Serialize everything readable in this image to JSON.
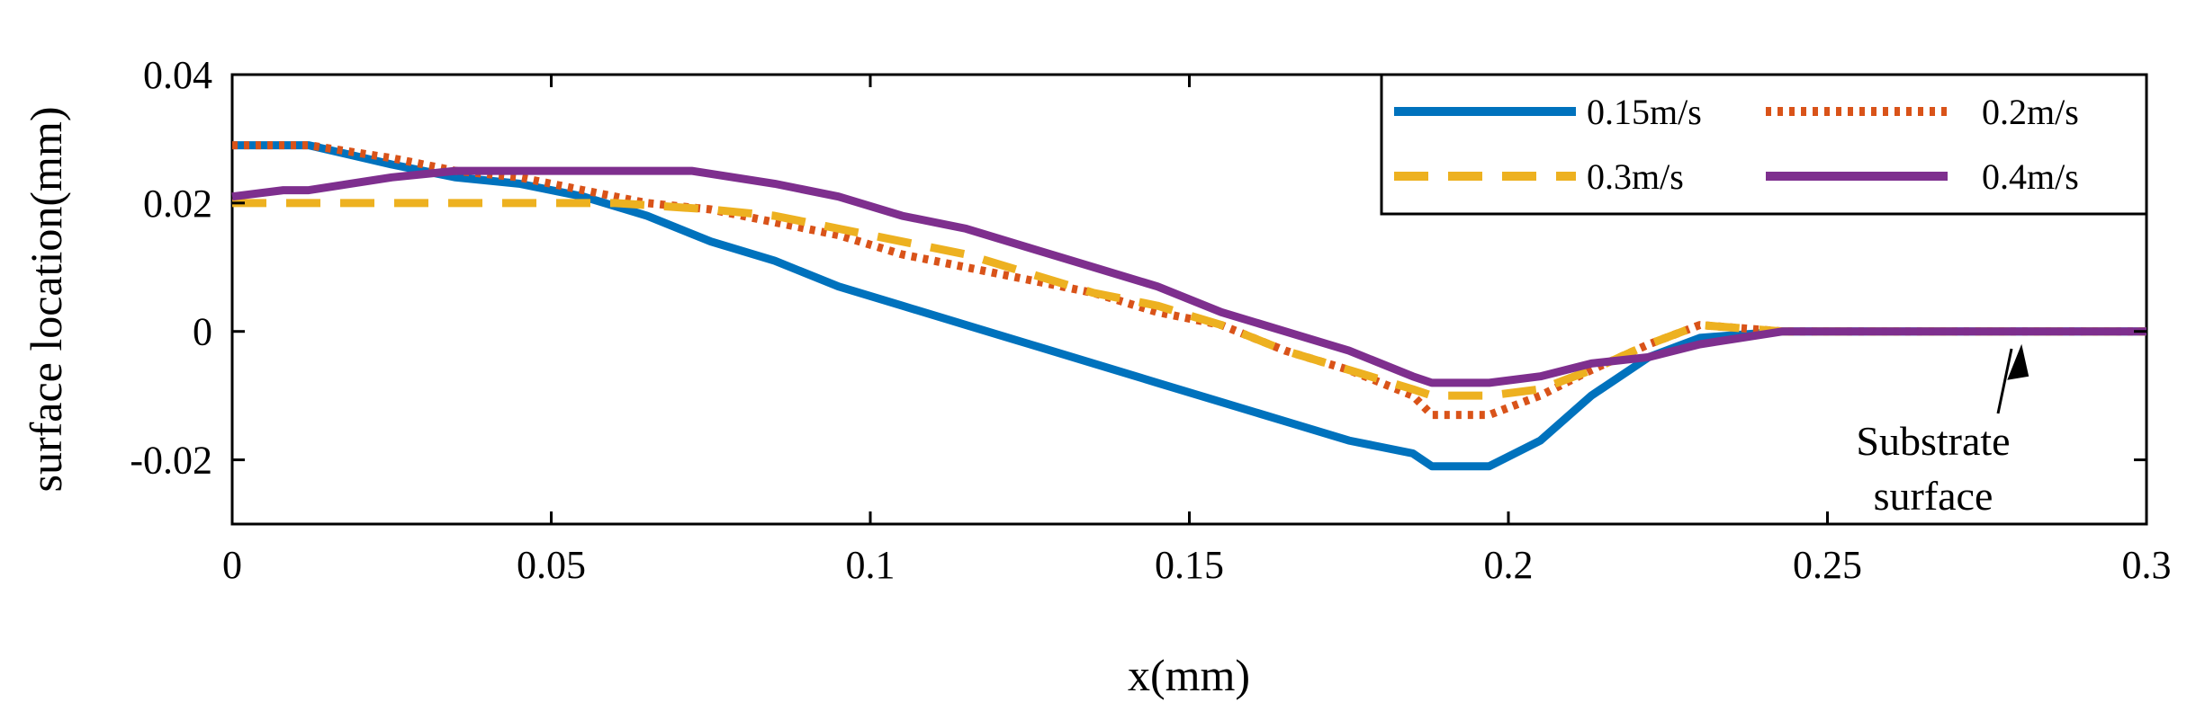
{
  "chart_data": {
    "type": "line",
    "title": "",
    "xlabel": "x(mm)",
    "ylabel": "surface location(mm)",
    "xlim": [
      0,
      0.3
    ],
    "ylim": [
      -0.03,
      0.04
    ],
    "xticks": [
      0,
      0.05,
      0.1,
      0.15,
      0.2,
      0.25,
      0.3
    ],
    "xtick_labels": [
      "0",
      "0.05",
      "0.1",
      "0.15",
      "0.2",
      "0.25",
      "0.3"
    ],
    "yticks": [
      -0.02,
      0,
      0.02,
      0.04
    ],
    "ytick_labels": [
      "-0.02",
      "0",
      "0.02",
      "0.04"
    ],
    "grid": false,
    "legend_position": "top-right",
    "series": [
      {
        "name": "0.15m/s",
        "color": "#0072BD",
        "style": "solid",
        "x": [
          0,
          0.012,
          0.025,
          0.035,
          0.045,
          0.055,
          0.065,
          0.075,
          0.085,
          0.095,
          0.105,
          0.115,
          0.125,
          0.135,
          0.145,
          0.155,
          0.165,
          0.175,
          0.185,
          0.188,
          0.197,
          0.205,
          0.213,
          0.222,
          0.23,
          0.243,
          0.3
        ],
        "y": [
          0.029,
          0.029,
          0.026,
          0.024,
          0.023,
          0.021,
          0.018,
          0.014,
          0.011,
          0.007,
          0.004,
          0.001,
          -0.002,
          -0.005,
          -0.008,
          -0.011,
          -0.014,
          -0.017,
          -0.019,
          -0.021,
          -0.021,
          -0.017,
          -0.01,
          -0.004,
          -0.001,
          0,
          0
        ]
      },
      {
        "name": "0.2m/s",
        "color": "#D95319",
        "style": "dotted",
        "x": [
          0,
          0.012,
          0.025,
          0.035,
          0.045,
          0.055,
          0.065,
          0.075,
          0.085,
          0.095,
          0.105,
          0.115,
          0.125,
          0.135,
          0.145,
          0.155,
          0.165,
          0.175,
          0.185,
          0.188,
          0.197,
          0.205,
          0.213,
          0.222,
          0.23,
          0.243,
          0.3
        ],
        "y": [
          0.029,
          0.029,
          0.027,
          0.025,
          0.024,
          0.022,
          0.02,
          0.019,
          0.017,
          0.015,
          0.012,
          0.01,
          0.008,
          0.006,
          0.003,
          0.001,
          -0.003,
          -0.006,
          -0.01,
          -0.013,
          -0.013,
          -0.01,
          -0.006,
          -0.002,
          0.001,
          0,
          0
        ]
      },
      {
        "name": "0.3m/s",
        "color": "#EDB120",
        "style": "dashed",
        "x": [
          0,
          0.06,
          0.075,
          0.085,
          0.095,
          0.105,
          0.115,
          0.125,
          0.135,
          0.145,
          0.155,
          0.165,
          0.175,
          0.185,
          0.188,
          0.197,
          0.205,
          0.213,
          0.222,
          0.23,
          0.243,
          0.3
        ],
        "y": [
          0.02,
          0.02,
          0.019,
          0.018,
          0.016,
          0.014,
          0.012,
          0.009,
          0.006,
          0.004,
          0.001,
          -0.003,
          -0.006,
          -0.009,
          -0.01,
          -0.01,
          -0.009,
          -0.006,
          -0.002,
          0.001,
          0,
          0
        ]
      },
      {
        "name": "0.4m/s",
        "color": "#7E2F8E",
        "style": "solid",
        "x": [
          0,
          0.008,
          0.012,
          0.025,
          0.035,
          0.045,
          0.055,
          0.065,
          0.072,
          0.085,
          0.095,
          0.105,
          0.115,
          0.125,
          0.135,
          0.145,
          0.155,
          0.165,
          0.175,
          0.185,
          0.188,
          0.197,
          0.205,
          0.213,
          0.222,
          0.23,
          0.243,
          0.3
        ],
        "y": [
          0.021,
          0.022,
          0.022,
          0.024,
          0.025,
          0.025,
          0.025,
          0.025,
          0.025,
          0.023,
          0.021,
          0.018,
          0.016,
          0.013,
          0.01,
          0.007,
          0.003,
          0,
          -0.003,
          -0.007,
          -0.008,
          -0.008,
          -0.007,
          -0.005,
          -0.004,
          -0.002,
          0,
          0
        ]
      }
    ],
    "annotation": {
      "lines": [
        "Substrate",
        "surface"
      ],
      "arrow_target": [
        0.28,
        0
      ]
    }
  }
}
